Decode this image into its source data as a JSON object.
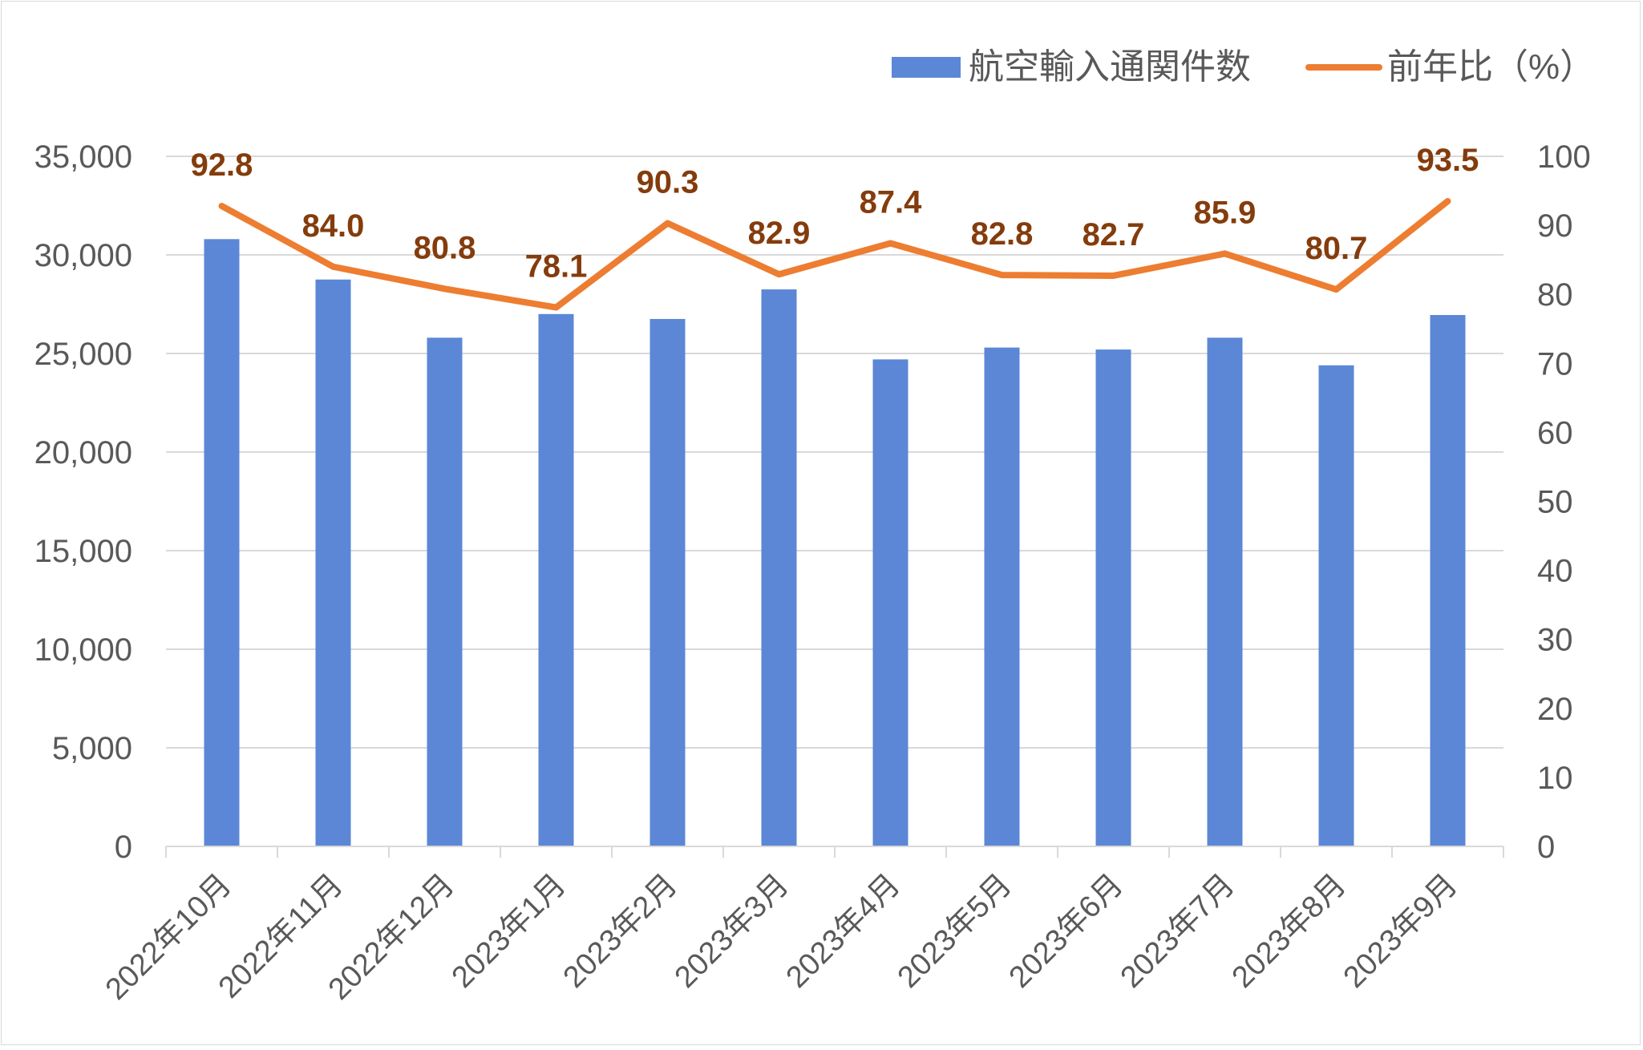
{
  "chart_data": {
    "type": "bar",
    "categories": [
      "2022年10月",
      "2022年11月",
      "2022年12月",
      "2023年1月",
      "2023年2月",
      "2023年3月",
      "2023年4月",
      "2023年5月",
      "2023年6月",
      "2023年7月",
      "2023年8月",
      "2023年9月"
    ],
    "series": [
      {
        "name": "航空輸入通関件数",
        "type": "bar",
        "axis": "left",
        "color": "#5b87d6",
        "values": [
          30800,
          28750,
          25800,
          27000,
          26750,
          28250,
          24700,
          25300,
          25200,
          25800,
          24400,
          26950
        ]
      },
      {
        "name": "前年比（%）",
        "type": "line",
        "axis": "right",
        "color": "#ed7d31",
        "values": [
          92.8,
          84.0,
          80.8,
          78.1,
          90.3,
          82.9,
          87.4,
          82.8,
          82.7,
          85.9,
          80.7,
          93.5
        ],
        "labels": [
          "92.8",
          "84.0",
          "80.8",
          "78.1",
          "90.3",
          "82.9",
          "87.4",
          "82.8",
          "82.7",
          "85.9",
          "80.7",
          "93.5"
        ]
      }
    ],
    "y_left": {
      "min": 0,
      "max": 35000,
      "ticks": [
        "0",
        "5,000",
        "10,000",
        "15,000",
        "20,000",
        "25,000",
        "30,000",
        "35,000"
      ]
    },
    "y_right": {
      "min": 0,
      "max": 100,
      "ticks": [
        "0",
        "10",
        "20",
        "30",
        "40",
        "50",
        "60",
        "70",
        "80",
        "90",
        "100"
      ]
    },
    "grid": true,
    "legend": "top-right",
    "label_color": "#843c0c",
    "tick_color": "#595959",
    "grid_color": "#d9d9d9"
  }
}
